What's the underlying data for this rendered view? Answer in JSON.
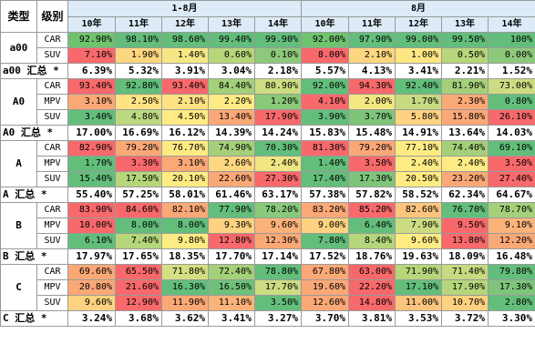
{
  "headers": {
    "type_label": "类型",
    "level_label": "级别",
    "group1": "1-8月",
    "group2": "8月",
    "years": [
      "10年",
      "11年",
      "12年",
      "13年",
      "14年"
    ]
  },
  "rows": [
    {
      "kind": "data",
      "cat": "a00",
      "catRowspan": 2,
      "level": "CAR",
      "g1": [
        "92.90%",
        "98.10%",
        "98.60%",
        "99.40%",
        "99.90%"
      ],
      "g2": [
        "92.00%",
        "97.90%",
        "99.00%",
        "99.50%",
        "100%"
      ],
      "colors": [
        "#6fc36f",
        "#63be7b",
        "#63be7b",
        "#63be7b",
        "#63be7b",
        "#6fc36f",
        "#63be7b",
        "#63be7b",
        "#63be7b",
        "#63be7b"
      ]
    },
    {
      "kind": "data",
      "level": "SUV",
      "g1": [
        "7.10%",
        "1.90%",
        "1.40%",
        "0.60%",
        "0.10%"
      ],
      "g2": [
        "8.00%",
        "2.10%",
        "1.00%",
        "0.50%",
        "0.00%"
      ],
      "colors": [
        "#f8696b",
        "#fcd680",
        "#f5e884",
        "#b7d67a",
        "#8dc97b",
        "#f8696b",
        "#fcd680",
        "#fee683",
        "#b7d67a",
        "#8dc97b"
      ]
    },
    {
      "kind": "sum",
      "label": "a00 汇总 *",
      "g1": [
        "6.39%",
        "5.32%",
        "3.91%",
        "3.04%",
        "2.18%"
      ],
      "g2": [
        "5.57%",
        "4.13%",
        "3.41%",
        "2.21%",
        "1.52%"
      ]
    },
    {
      "kind": "data",
      "cat": "A0",
      "catRowspan": 3,
      "level": "CAR",
      "g1": [
        "93.40%",
        "92.80%",
        "93.40%",
        "84.40%",
        "80.90%"
      ],
      "g2": [
        "92.00%",
        "94.30%",
        "92.40%",
        "81.90%",
        "73.00%"
      ],
      "colors": [
        "#f8696b",
        "#63be7b",
        "#f8696b",
        "#a4d07a",
        "#ccdd82",
        "#63be7b",
        "#f8696b",
        "#63be7b",
        "#a4d07a",
        "#cddc82"
      ]
    },
    {
      "kind": "data",
      "level": "MPV",
      "g1": [
        "3.10%",
        "2.50%",
        "2.10%",
        "2.20%",
        "1.20%"
      ],
      "g2": [
        "4.10%",
        "2.00%",
        "1.70%",
        "2.30%",
        "0.80%"
      ],
      "colors": [
        "#fba877",
        "#ffe283",
        "#ffe283",
        "#ffeb84",
        "#8ac97a",
        "#f8696b",
        "#f1e783",
        "#c7da80",
        "#fba877",
        "#63be7b"
      ]
    },
    {
      "kind": "data",
      "level": "SUV",
      "g1": [
        "3.40%",
        "4.80%",
        "4.50%",
        "13.40%",
        "17.90%"
      ],
      "g2": [
        "3.90%",
        "3.70%",
        "5.80%",
        "15.80%",
        "26.10%"
      ],
      "colors": [
        "#63be7b",
        "#bcd880",
        "#ffeb84",
        "#fba877",
        "#f8696b",
        "#63be7b",
        "#7ec47a",
        "#fed280",
        "#fba877",
        "#f8696b"
      ]
    },
    {
      "kind": "sum",
      "label": "A0 汇总 *",
      "g1": [
        "17.00%",
        "16.69%",
        "16.12%",
        "14.39%",
        "14.24%"
      ],
      "g2": [
        "15.83%",
        "15.48%",
        "14.91%",
        "13.64%",
        "14.03%"
      ]
    },
    {
      "kind": "data",
      "cat": "A",
      "catRowspan": 3,
      "level": "CAR",
      "g1": [
        "82.90%",
        "79.20%",
        "76.70%",
        "74.90%",
        "70.30%"
      ],
      "g2": [
        "81.30%",
        "79.20%",
        "77.10%",
        "74.40%",
        "69.10%"
      ],
      "colors": [
        "#f8696b",
        "#fba877",
        "#ffeb84",
        "#a4d07a",
        "#63be7b",
        "#f8696b",
        "#fba877",
        "#ffeb84",
        "#a4d07a",
        "#63be7b"
      ]
    },
    {
      "kind": "data",
      "level": "MPV",
      "g1": [
        "1.70%",
        "3.30%",
        "3.10%",
        "2.60%",
        "2.40%"
      ],
      "g2": [
        "1.40%",
        "3.50%",
        "2.40%",
        "2.40%",
        "3.50%"
      ],
      "colors": [
        "#63be7b",
        "#f8696b",
        "#fba877",
        "#ffd780",
        "#f0e683",
        "#63be7b",
        "#f8696b",
        "#ffeb84",
        "#ffeb84",
        "#f8696b"
      ]
    },
    {
      "kind": "data",
      "level": "SUV",
      "g1": [
        "15.40%",
        "17.50%",
        "20.10%",
        "22.60%",
        "27.30%"
      ],
      "g2": [
        "17.40%",
        "17.30%",
        "20.50%",
        "23.20%",
        "27.40%"
      ],
      "colors": [
        "#63be7b",
        "#b5d67a",
        "#ffeb84",
        "#fba877",
        "#f8696b",
        "#63be7b",
        "#7ec47a",
        "#ffeb84",
        "#fba877",
        "#f8696b"
      ]
    },
    {
      "kind": "sum",
      "label": "A 汇总 *",
      "g1": [
        "55.40%",
        "57.25%",
        "58.01%",
        "61.46%",
        "63.17%"
      ],
      "g2": [
        "57.38%",
        "57.82%",
        "58.52%",
        "62.34%",
        "64.67%"
      ]
    },
    {
      "kind": "data",
      "cat": "B",
      "catRowspan": 3,
      "level": "CAR",
      "g1": [
        "83.90%",
        "84.60%",
        "82.10%",
        "77.90%",
        "78.20%"
      ],
      "g2": [
        "83.20%",
        "85.20%",
        "82.60%",
        "76.70%",
        "78.70%"
      ],
      "colors": [
        "#f8696b",
        "#f8696b",
        "#fba877",
        "#63be7b",
        "#8ac97a",
        "#fba877",
        "#f8696b",
        "#fcc57d",
        "#63be7b",
        "#a4d07a"
      ]
    },
    {
      "kind": "data",
      "level": "MPV",
      "g1": [
        "10.00%",
        "8.00%",
        "8.00%",
        "9.30%",
        "9.60%"
      ],
      "g2": [
        "9.00%",
        "6.40%",
        "7.90%",
        "9.50%",
        "9.10%"
      ],
      "colors": [
        "#f8696b",
        "#63be7b",
        "#63be7b",
        "#fed280",
        "#fcb37a",
        "#fed280",
        "#63be7b",
        "#cbdc82",
        "#f8696b",
        "#fcb37a"
      ]
    },
    {
      "kind": "data",
      "level": "SUV",
      "g1": [
        "6.10%",
        "7.40%",
        "9.80%",
        "12.80%",
        "12.30%"
      ],
      "g2": [
        "7.80%",
        "8.40%",
        "9.60%",
        "13.80%",
        "12.20%"
      ],
      "colors": [
        "#63be7b",
        "#b5d67a",
        "#ffeb84",
        "#f8696b",
        "#fba877",
        "#63be7b",
        "#b5d67a",
        "#ffeb84",
        "#f8696b",
        "#fba877"
      ]
    },
    {
      "kind": "sum",
      "label": "B 汇总 *",
      "g1": [
        "17.97%",
        "17.65%",
        "18.35%",
        "17.70%",
        "17.14%"
      ],
      "g2": [
        "17.52%",
        "18.76%",
        "19.63%",
        "18.09%",
        "16.48%"
      ]
    },
    {
      "kind": "data",
      "cat": "C",
      "catRowspan": 3,
      "level": "CAR",
      "g1": [
        "69.60%",
        "65.50%",
        "71.80%",
        "72.40%",
        "78.80%"
      ],
      "g2": [
        "67.80%",
        "63.00%",
        "71.90%",
        "71.40%",
        "79.80%"
      ],
      "colors": [
        "#fba877",
        "#f8696b",
        "#d4df82",
        "#a4d07a",
        "#63be7b",
        "#fba877",
        "#f8696b",
        "#b5d67a",
        "#c7da80",
        "#63be7b"
      ]
    },
    {
      "kind": "data",
      "level": "MPV",
      "g1": [
        "20.80%",
        "21.60%",
        "16.30%",
        "16.50%",
        "17.70%"
      ],
      "g2": [
        "19.60%",
        "22.20%",
        "17.10%",
        "17.90%",
        "17.30%"
      ],
      "colors": [
        "#fba877",
        "#f8696b",
        "#63be7b",
        "#6ec17b",
        "#cbdc82",
        "#fba877",
        "#f8696b",
        "#63be7b",
        "#b5d67a",
        "#7ec47a"
      ]
    },
    {
      "kind": "data",
      "level": "SUV",
      "g1": [
        "9.60%",
        "12.90%",
        "11.90%",
        "11.10%",
        "3.50%"
      ],
      "g2": [
        "12.60%",
        "14.80%",
        "11.00%",
        "10.70%",
        "2.80%"
      ],
      "colors": [
        "#fed280",
        "#f8696b",
        "#fba877",
        "#fcb37a",
        "#63be7b",
        "#fba877",
        "#f8696b",
        "#fcc57d",
        "#fed280",
        "#63be7b"
      ]
    },
    {
      "kind": "sum",
      "label": "C 汇总 *",
      "g1": [
        "3.24%",
        "3.68%",
        "3.62%",
        "3.41%",
        "3.27%"
      ],
      "g2": [
        "3.70%",
        "3.81%",
        "3.53%",
        "3.72%",
        "3.30%"
      ]
    }
  ]
}
